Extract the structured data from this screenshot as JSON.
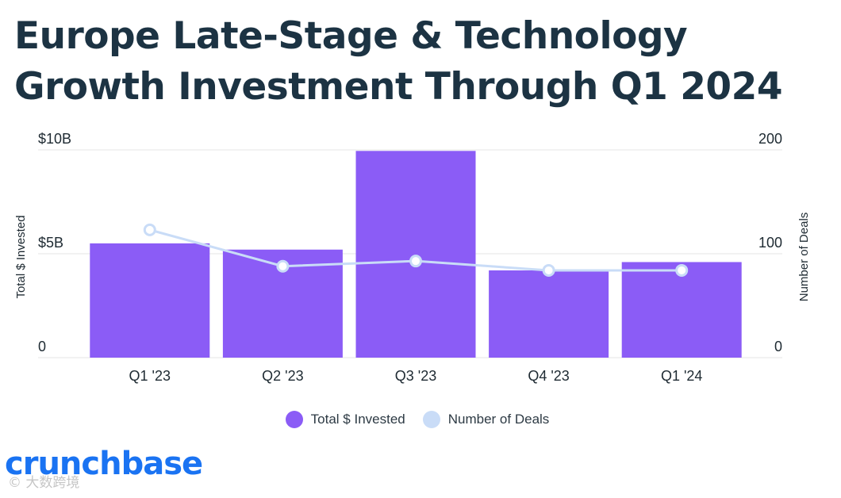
{
  "title": "Europe Late-Stage & Technology Growth Investment Through Q1 2024",
  "colors": {
    "bar": "#8b5cf6",
    "line": "#c9dcf7",
    "marker_fill": "#ffffff",
    "grid": "#e6e6e6",
    "title": "#1c3343"
  },
  "chart_data": {
    "type": "bar",
    "categories": [
      "Q1 '23",
      "Q2 '23",
      "Q3 '23",
      "Q4 '23",
      "Q1 '24"
    ],
    "series": [
      {
        "name": "Total $ Invested",
        "type": "bar",
        "axis": "left",
        "values": [
          5.5,
          5.2,
          9.95,
          4.2,
          4.6
        ]
      },
      {
        "name": "Number of Deals",
        "type": "line",
        "axis": "right",
        "values": [
          123,
          88,
          93,
          84,
          84
        ]
      }
    ],
    "yleft": {
      "label": "Total $ Invested",
      "ylim": [
        0,
        10
      ],
      "ticks": [
        0,
        5,
        10
      ],
      "tick_labels": [
        "0",
        "$5B",
        "$10B"
      ]
    },
    "yright": {
      "label": "Number of Deals",
      "ylim": [
        0,
        200
      ],
      "ticks": [
        0,
        100,
        200
      ],
      "tick_labels": [
        "0",
        "100",
        "200"
      ]
    },
    "grid": true,
    "legend_position": "bottom"
  },
  "legend": [
    {
      "label": "Total $ Invested",
      "color": "#8b5cf6"
    },
    {
      "label": "Number of Deals",
      "color": "#c9dcf7"
    }
  ],
  "brand": {
    "logo_text": "crunchbase",
    "watermark_text": "© 大数跨境"
  }
}
